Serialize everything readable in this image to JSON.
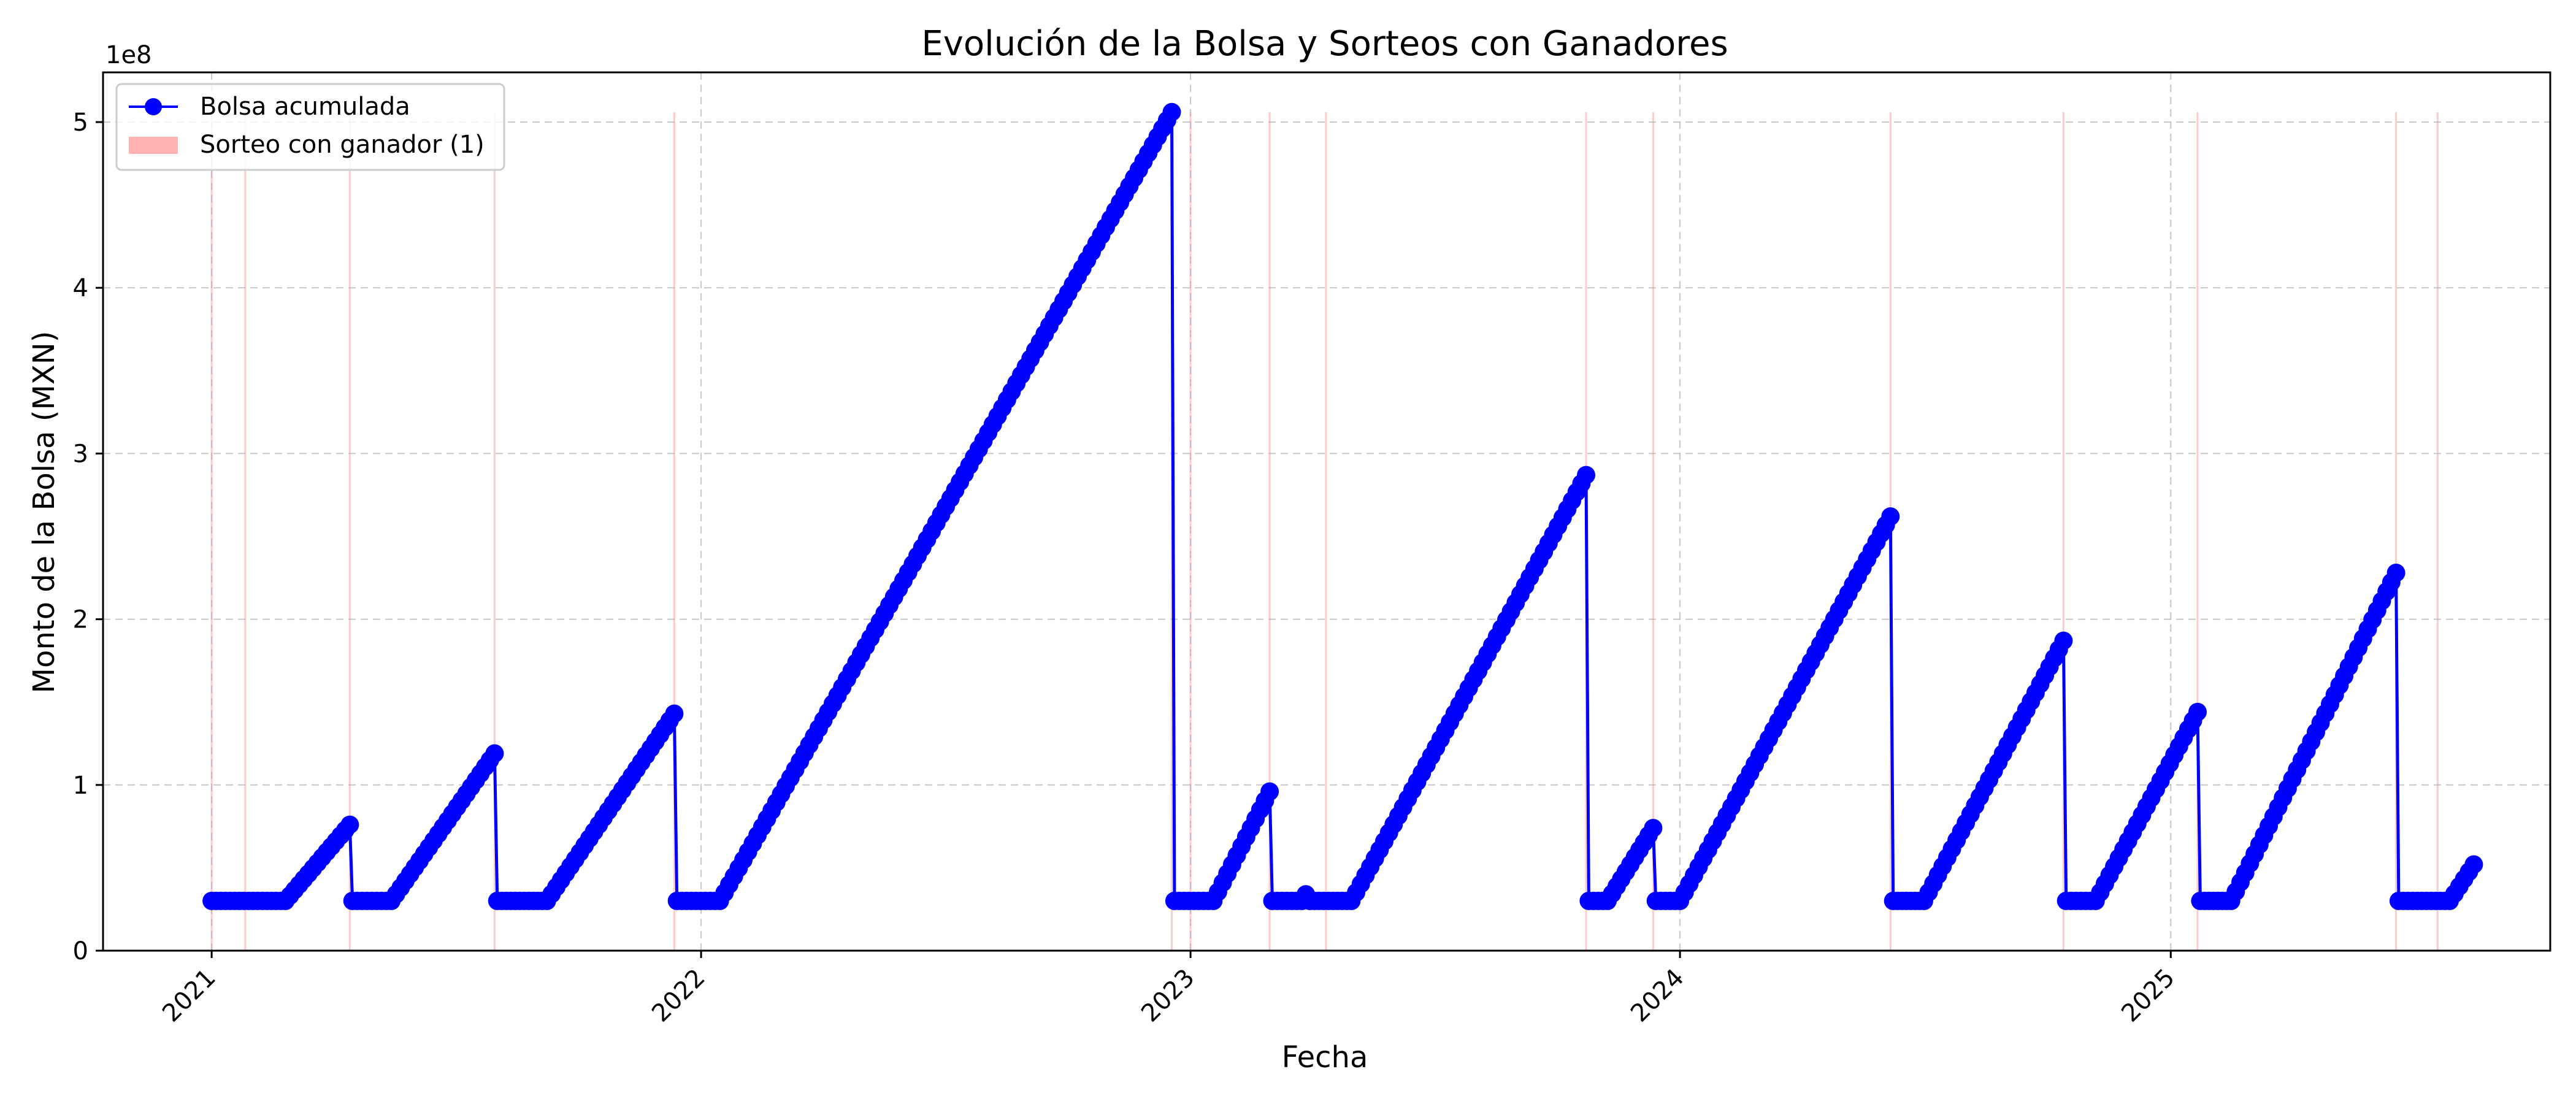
{
  "chart_data": {
    "type": "line",
    "title": "Evolución de la Bolsa y Sorteos con Ganadores",
    "xlabel": "Fecha",
    "ylabel": "Monto de la Bolsa (MXN)",
    "y_offset_text": "1e8",
    "x_ticks": [
      "2021",
      "2022",
      "2023",
      "2024",
      "2025"
    ],
    "y_ticks": [
      "0",
      "1",
      "2",
      "3",
      "4",
      "5"
    ],
    "xlim": [
      "2020-10-12",
      "2025-10-11"
    ],
    "ylim": [
      0,
      530000000
    ],
    "grid": true,
    "legend_position": "top-left",
    "colors": {
      "line": "#0000ff",
      "winner_band": "#ffb3b3",
      "grid": "#b0b0b0"
    },
    "legend": [
      {
        "label": "Bolsa acumulada",
        "kind": "line-marker"
      },
      {
        "label": "Sorteo con ganador (1)",
        "kind": "band"
      }
    ],
    "series": [
      {
        "name": "Bolsa acumulada",
        "segments": [
          [
            "2021-01-01",
            30000000,
            "2021-02-25",
            30000000,
            "2021-04-14",
            76000000
          ],
          [
            "2021-04-16",
            30000000,
            "2021-05-15",
            30000000,
            "2021-07-31",
            119000000
          ],
          [
            "2021-08-02",
            30000000,
            "2021-09-08",
            30000000,
            "2021-12-12",
            143000000
          ],
          [
            "2021-12-14",
            30000000,
            "2022-01-15",
            30000000,
            "2022-12-18",
            506000000
          ],
          [
            "2022-12-20",
            30000000,
            "2023-01-18",
            30000000,
            "2023-03-01",
            96000000
          ],
          [
            "2023-03-03",
            30000000,
            "2023-03-25",
            30000000,
            "2023-03-28",
            34000000,
            "2023-03-31",
            30000000,
            "2023-05-01",
            30000000,
            "2023-10-23",
            287000000
          ],
          [
            "2023-10-25",
            30000000,
            "2023-11-08",
            30000000,
            "2023-12-12",
            74000000
          ],
          [
            "2023-12-14",
            30000000,
            "2024-01-01",
            30000000,
            "2024-06-06",
            262000000
          ],
          [
            "2024-06-08",
            30000000,
            "2024-07-01",
            30000000,
            "2024-10-13",
            187000000
          ],
          [
            "2024-10-15",
            30000000,
            "2024-11-06",
            30000000,
            "2025-01-21",
            144000000
          ],
          [
            "2025-01-23",
            30000000,
            "2025-02-15",
            30000000,
            "2025-06-18",
            228000000
          ],
          [
            "2025-06-20",
            30000000,
            "2025-07-28",
            30000000,
            "2025-08-15",
            52000000
          ]
        ]
      }
    ],
    "winner_draws": [
      "2021-01-01",
      "2021-01-26",
      "2021-04-14",
      "2021-07-31",
      "2021-12-12",
      "2022-12-18",
      "2023-01-01",
      "2023-03-01",
      "2023-04-12",
      "2023-10-23",
      "2023-12-12",
      "2024-06-06",
      "2024-10-13",
      "2025-01-21",
      "2025-06-18",
      "2025-07-19"
    ]
  }
}
